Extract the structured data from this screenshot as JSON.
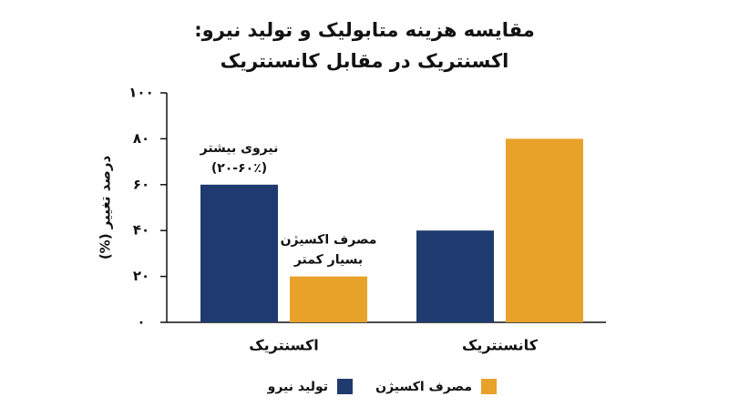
{
  "chart_data": {
    "type": "bar",
    "title": [
      "مقایسه هزینه متابولیک و تولید نیرو:",
      "اکسنتریک در مقابل کانسنتریک"
    ],
    "y_label": "درصد تغییر (%)",
    "categories": [
      "اکسنتریک",
      "کانسنتریک"
    ],
    "series": [
      {
        "name": "تولید نیرو",
        "color": "#1f3a6e",
        "values": [
          60,
          40
        ]
      },
      {
        "name": "مصرف اکسیژن",
        "color": "#e8a22a",
        "values": [
          20,
          80
        ]
      }
    ],
    "annotations": [
      [
        "نیروی بیشتر",
        "(۲۰-۶۰٪)"
      ],
      [
        "مصرف اکسیژن",
        "بسیار کمتر"
      ]
    ],
    "ylim": [
      0,
      100
    ],
    "yticks": [
      {
        "value": 0,
        "label": "۰"
      },
      {
        "value": 20,
        "label": "۲۰"
      },
      {
        "value": 40,
        "label": "۴۰"
      },
      {
        "value": 60,
        "label": "۶۰"
      },
      {
        "value": 80,
        "label": "۸۰"
      },
      {
        "value": 100,
        "label": "۱۰۰"
      }
    ],
    "grid": false
  }
}
